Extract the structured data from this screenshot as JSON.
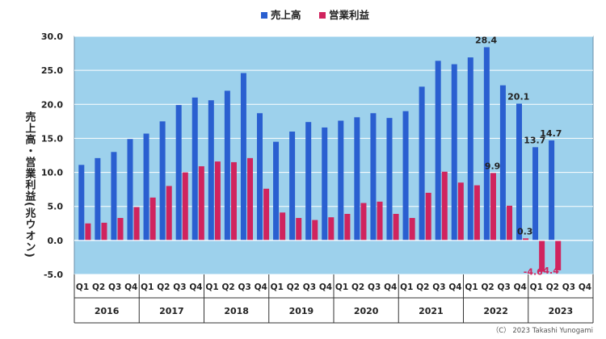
{
  "chart_data": {
    "type": "bar",
    "ylabel": "売上高・営業利益(兆ウオン)",
    "ylim": [
      -5,
      30
    ],
    "yticks": [
      "30.0",
      "25.0",
      "20.0",
      "15.0",
      "10.0",
      "5.0",
      "0.0",
      "-5.0"
    ],
    "grid": true,
    "legend_position": "top-center",
    "plot_background": "#9dd1ec",
    "categories": [
      "Q1",
      "Q2",
      "Q3",
      "Q4",
      "Q1",
      "Q2",
      "Q3",
      "Q4",
      "Q1",
      "Q2",
      "Q3",
      "Q4",
      "Q1",
      "Q2",
      "Q3",
      "Q4",
      "Q1",
      "Q2",
      "Q3",
      "Q4",
      "Q1",
      "Q2",
      "Q3",
      "Q4",
      "Q1",
      "Q2",
      "Q3",
      "Q4",
      "Q1",
      "Q2",
      "Q3",
      "Q4"
    ],
    "years": [
      "2016",
      "2017",
      "2018",
      "2019",
      "2020",
      "2021",
      "2022",
      "2023"
    ],
    "series": [
      {
        "name": "売上高",
        "color": "#2a5fd0",
        "values": [
          11.1,
          12.1,
          13.0,
          14.9,
          15.7,
          17.5,
          19.9,
          21.0,
          20.6,
          22.0,
          24.6,
          18.7,
          14.5,
          16.0,
          17.4,
          16.6,
          17.6,
          18.1,
          18.7,
          18.0,
          19.0,
          22.6,
          26.4,
          25.9,
          26.9,
          28.4,
          22.8,
          20.1,
          13.7,
          14.7,
          null,
          null
        ]
      },
      {
        "name": "営業利益",
        "color": "#d0245e",
        "values": [
          2.5,
          2.6,
          3.3,
          4.9,
          6.3,
          8.0,
          10.0,
          10.9,
          11.6,
          11.5,
          12.1,
          7.6,
          4.1,
          3.3,
          3.0,
          3.4,
          3.9,
          5.5,
          5.7,
          3.9,
          3.3,
          7.0,
          10.1,
          8.5,
          8.1,
          9.9,
          5.1,
          0.3,
          -4.6,
          -4.4,
          null,
          null
        ]
      }
    ],
    "data_labels": [
      {
        "series": 0,
        "index": 25,
        "text": "28.4"
      },
      {
        "series": 0,
        "index": 27,
        "text": "20.1"
      },
      {
        "series": 0,
        "index": 28,
        "text": "13.7"
      },
      {
        "series": 0,
        "index": 29,
        "text": "14.7"
      },
      {
        "series": 1,
        "index": 25,
        "text": "9.9"
      },
      {
        "series": 1,
        "index": 27,
        "text": "0.3"
      },
      {
        "series": 1,
        "index": 28,
        "text": "-4.6"
      },
      {
        "series": 1,
        "index": 29,
        "text": "-4.4"
      }
    ]
  },
  "copyright": "（C） 2023 Takashi Yunogami"
}
